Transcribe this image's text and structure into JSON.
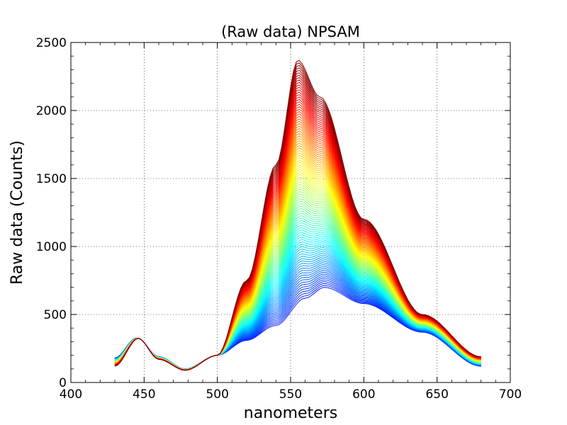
{
  "chart_data": {
    "type": "line",
    "title": "(Raw data) NPSAM",
    "xlabel": "nanometers",
    "ylabel": "Raw data (Counts)",
    "xlim": [
      400,
      700
    ],
    "ylim": [
      0,
      2500
    ],
    "x_ticks": [
      400,
      450,
      500,
      550,
      600,
      650,
      700
    ],
    "y_ticks": [
      0,
      500,
      1000,
      1500,
      2000,
      2500
    ],
    "grid": true,
    "grid_style": "dotted",
    "legend": "none",
    "colormap": "jet",
    "x_range_data": [
      430,
      680
    ],
    "series_count": 100,
    "series_range": {
      "first": {
        "x": [
          430,
          445,
          460,
          478,
          500,
          520,
          540,
          560,
          573,
          600,
          640,
          680
        ],
        "values": [
          180,
          330,
          190,
          100,
          200,
          310,
          420,
          620,
          700,
          580,
          370,
          120
        ]
      },
      "last": {
        "x": [
          430,
          446,
          460,
          478,
          500,
          520,
          540,
          555,
          570,
          600,
          640,
          680
        ],
        "values": [
          120,
          325,
          170,
          90,
          200,
          750,
          1600,
          2370,
          2100,
          1200,
          500,
          190
        ]
      }
    },
    "colors": {
      "low": "#0000aa",
      "mid_low": "#00aaff",
      "mid": "#80ff80",
      "mid_high": "#ffff00",
      "high": "#ff2000",
      "end": "#7f0000"
    }
  }
}
